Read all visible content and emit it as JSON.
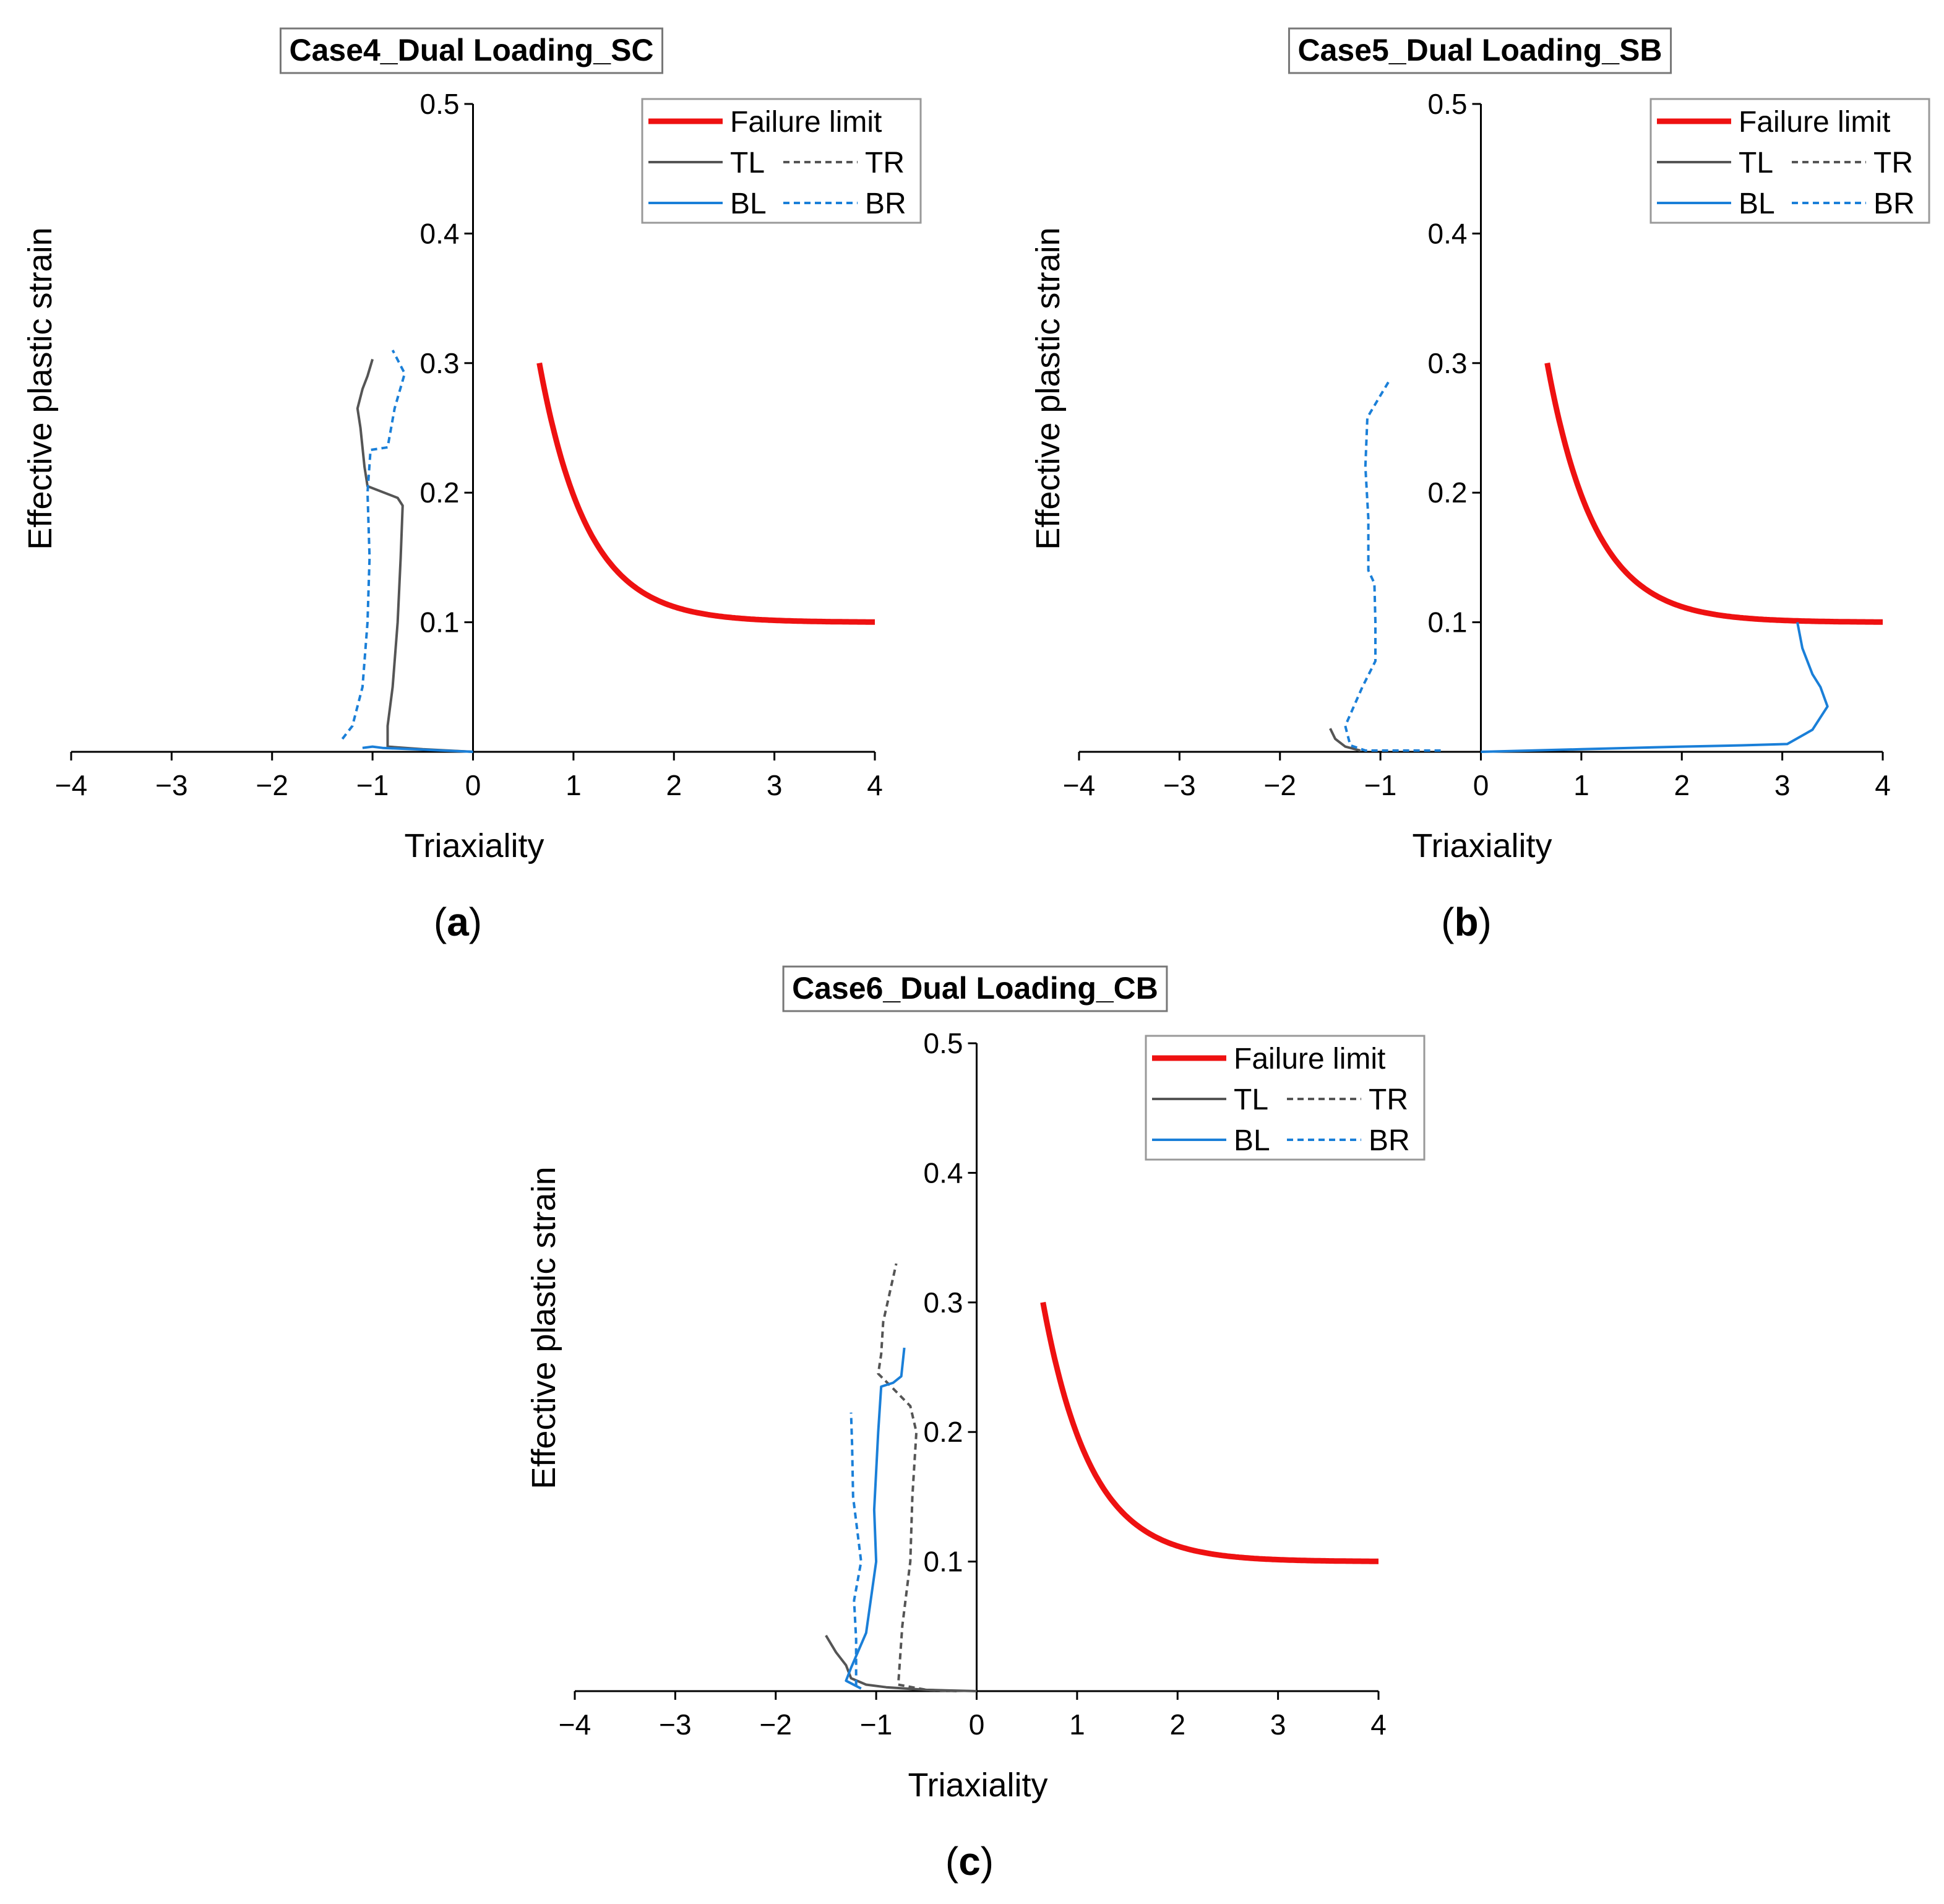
{
  "colors": {
    "failure": "#ee1111",
    "tl_tr": "#555555",
    "bl_br": "#1a7fd8",
    "axis": "#000000",
    "legend_border": "#999999",
    "title_border": "#777777"
  },
  "chart_data": [
    {
      "id": "a",
      "type": "line",
      "title": "Case4_Dual Loading_SC",
      "caption": "(a)",
      "caption_letter": "a",
      "xlabel": "Triaxiality",
      "ylabel": "Effective plastic strain",
      "xlim": [
        -4,
        4
      ],
      "ylim": [
        0,
        0.5
      ],
      "xticks": [
        -4,
        -3,
        -2,
        -1,
        0,
        1,
        2,
        3,
        4
      ],
      "xtick_labels": [
        "−4",
        "−3",
        "−2",
        "−1",
        "0",
        "1",
        "2",
        "3",
        "4"
      ],
      "yticks": [
        0.1,
        0.2,
        0.3,
        0.4,
        0.5
      ],
      "ytick_labels": [
        "0.1",
        "0.2",
        "0.3",
        "0.4",
        "0.5"
      ],
      "legend_position": "top-right",
      "legend": {
        "failure": "Failure limit",
        "tl": "TL",
        "tr": "TR",
        "bl": "BL",
        "br": "BR"
      },
      "failure_limit": {
        "name": "Failure limit",
        "formula": "0.1 + 0.8 * exp(-2.1 * x)",
        "x_start": 0.66,
        "x_end": 4
      },
      "series": [
        {
          "name": "TL",
          "key": "tl",
          "values": [
            [
              0,
              0
            ],
            [
              -0.5,
              0.002
            ],
            [
              -0.85,
              0.004
            ],
            [
              -0.85,
              0.02
            ],
            [
              -0.8,
              0.05
            ],
            [
              -0.75,
              0.1
            ],
            [
              -0.72,
              0.15
            ],
            [
              -0.7,
              0.19
            ],
            [
              -0.75,
              0.196
            ],
            [
              -1.05,
              0.205
            ],
            [
              -1.08,
              0.22
            ],
            [
              -1.12,
              0.25
            ],
            [
              -1.15,
              0.265
            ],
            [
              -1.1,
              0.28
            ],
            [
              -1.05,
              0.29
            ],
            [
              -1.0,
              0.303
            ]
          ]
        },
        {
          "name": "TR",
          "key": "tr",
          "values": []
        },
        {
          "name": "BL",
          "key": "bl",
          "values": [
            [
              0,
              0
            ],
            [
              -0.3,
              0.001
            ],
            [
              -0.6,
              0.002
            ],
            [
              -0.9,
              0.003
            ],
            [
              -1.0,
              0.004
            ],
            [
              -1.1,
              0.003
            ]
          ]
        },
        {
          "name": "BR",
          "key": "br",
          "values": [
            [
              -1.3,
              0.01
            ],
            [
              -1.2,
              0.02
            ],
            [
              -1.1,
              0.05
            ],
            [
              -1.05,
              0.1
            ],
            [
              -1.03,
              0.15
            ],
            [
              -1.05,
              0.2
            ],
            [
              -1.02,
              0.233
            ],
            [
              -0.85,
              0.235
            ],
            [
              -0.78,
              0.265
            ],
            [
              -0.68,
              0.292
            ],
            [
              -0.8,
              0.31
            ]
          ]
        }
      ]
    },
    {
      "id": "b",
      "type": "line",
      "title": "Case5_Dual Loading_SB",
      "caption": "(b)",
      "caption_letter": "b",
      "xlabel": "Triaxiality",
      "ylabel": "Effective plastic strain",
      "xlim": [
        -4,
        4
      ],
      "ylim": [
        0,
        0.5
      ],
      "xticks": [
        -4,
        -3,
        -2,
        -1,
        0,
        1,
        2,
        3,
        4
      ],
      "xtick_labels": [
        "−4",
        "−3",
        "−2",
        "−1",
        "0",
        "1",
        "2",
        "3",
        "4"
      ],
      "yticks": [
        0.1,
        0.2,
        0.3,
        0.4,
        0.5
      ],
      "ytick_labels": [
        "0.1",
        "0.2",
        "0.3",
        "0.4",
        "0.5"
      ],
      "legend_position": "top-right",
      "legend": {
        "failure": "Failure limit",
        "tl": "TL",
        "tr": "TR",
        "bl": "BL",
        "br": "BR"
      },
      "failure_limit": {
        "name": "Failure limit",
        "formula": "0.1 + 0.8 * exp(-2.1 * x)",
        "x_start": 0.66,
        "x_end": 4
      },
      "series": [
        {
          "name": "TL",
          "key": "tl",
          "values": [
            [
              -1.2,
              0.001
            ],
            [
              -1.35,
              0.004
            ],
            [
              -1.45,
              0.01
            ],
            [
              -1.5,
              0.018
            ]
          ]
        },
        {
          "name": "TR",
          "key": "tr",
          "values": []
        },
        {
          "name": "BL",
          "key": "bl",
          "values": [
            [
              0,
              0
            ],
            [
              1.0,
              0.002
            ],
            [
              2.0,
              0.004
            ],
            [
              2.6,
              0.005
            ],
            [
              3.05,
              0.006
            ],
            [
              3.3,
              0.017
            ],
            [
              3.45,
              0.035
            ],
            [
              3.38,
              0.05
            ],
            [
              3.3,
              0.06
            ],
            [
              3.2,
              0.08
            ],
            [
              3.15,
              0.1
            ]
          ]
        },
        {
          "name": "BR",
          "key": "br",
          "values": [
            [
              -0.4,
              0.001
            ],
            [
              -0.8,
              0.001
            ],
            [
              -1.15,
              0.001
            ],
            [
              -1.3,
              0.005
            ],
            [
              -1.35,
              0.02
            ],
            [
              -1.18,
              0.05
            ],
            [
              -1.05,
              0.07
            ],
            [
              -1.05,
              0.1
            ],
            [
              -1.06,
              0.13
            ],
            [
              -1.12,
              0.14
            ],
            [
              -1.12,
              0.18
            ],
            [
              -1.15,
              0.22
            ],
            [
              -1.13,
              0.258
            ],
            [
              -1.0,
              0.275
            ],
            [
              -0.9,
              0.288
            ]
          ]
        }
      ]
    },
    {
      "id": "c",
      "type": "line",
      "title": "Case6_Dual Loading_CB",
      "caption": "(c)",
      "caption_letter": "c",
      "xlabel": "Triaxiality",
      "ylabel": "Effective plastic strain",
      "xlim": [
        -4,
        4
      ],
      "ylim": [
        0,
        0.5
      ],
      "xticks": [
        -4,
        -3,
        -2,
        -1,
        0,
        1,
        2,
        3,
        4
      ],
      "xtick_labels": [
        "−4",
        "−3",
        "−2",
        "−1",
        "0",
        "1",
        "2",
        "3",
        "4"
      ],
      "yticks": [
        0.1,
        0.2,
        0.3,
        0.4,
        0.5
      ],
      "ytick_labels": [
        "0.1",
        "0.2",
        "0.3",
        "0.4",
        "0.5"
      ],
      "legend_position": "top-right",
      "legend": {
        "failure": "Failure limit",
        "tl": "TL",
        "tr": "TR",
        "bl": "BL",
        "br": "BR"
      },
      "failure_limit": {
        "name": "Failure limit",
        "formula": "0.1 + 0.8 * exp(-2.1 * x)",
        "x_start": 0.66,
        "x_end": 4
      },
      "series": [
        {
          "name": "TL",
          "key": "tl",
          "values": [
            [
              0,
              0
            ],
            [
              -0.5,
              0.001
            ],
            [
              -0.9,
              0.003
            ],
            [
              -1.1,
              0.005
            ],
            [
              -1.25,
              0.01
            ],
            [
              -1.3,
              0.02
            ],
            [
              -1.4,
              0.03
            ],
            [
              -1.5,
              0.043
            ]
          ]
        },
        {
          "name": "TR",
          "key": "tr",
          "values": [
            [
              -0.2,
              0.0
            ],
            [
              -0.5,
              0.001
            ],
            [
              -0.78,
              0.005
            ],
            [
              -0.74,
              0.05
            ],
            [
              -0.66,
              0.1
            ],
            [
              -0.64,
              0.15
            ],
            [
              -0.6,
              0.2
            ],
            [
              -0.66,
              0.22
            ],
            [
              -0.85,
              0.235
            ],
            [
              -0.98,
              0.245
            ],
            [
              -0.95,
              0.26
            ],
            [
              -0.93,
              0.285
            ],
            [
              -0.8,
              0.33
            ]
          ]
        },
        {
          "name": "BL",
          "key": "bl",
          "values": [
            [
              -1.15,
              0.002
            ],
            [
              -1.3,
              0.008
            ],
            [
              -1.25,
              0.018
            ],
            [
              -1.1,
              0.045
            ],
            [
              -1.0,
              0.1
            ],
            [
              -1.02,
              0.14
            ],
            [
              -0.98,
              0.2
            ],
            [
              -0.95,
              0.235
            ],
            [
              -0.83,
              0.238
            ],
            [
              -0.75,
              0.243
            ],
            [
              -0.72,
              0.265
            ]
          ]
        },
        {
          "name": "BR",
          "key": "br",
          "values": [
            [
              -1.2,
              0.004
            ],
            [
              -1.2,
              0.04
            ],
            [
              -1.22,
              0.07
            ],
            [
              -1.15,
              0.1
            ],
            [
              -1.23,
              0.15
            ],
            [
              -1.24,
              0.19
            ],
            [
              -1.25,
              0.215
            ]
          ]
        }
      ]
    }
  ]
}
